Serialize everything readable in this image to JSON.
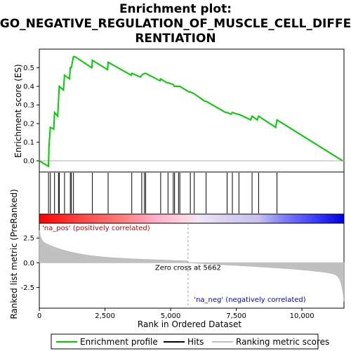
{
  "chart_data": {
    "type": "line",
    "title_lines": [
      "Enrichment plot:",
      "GO_NEGATIVE_REGULATION_OF_MUSCLE_CELL_DIFFE",
      "RENTIATION"
    ],
    "xlabel": "Rank in Ordered Dataset",
    "ylabel_top": "Enrichment score (ES)",
    "ylabel_bottom": "Ranked list metric (PreRanked)",
    "x_range": [
      0,
      11600
    ],
    "x_ticks": [
      0,
      2500,
      5000,
      7500,
      10000
    ],
    "x_tick_labels": [
      "0",
      "2,500",
      "5,000",
      "7,500",
      "10,000"
    ],
    "es_ylim": [
      -0.06,
      0.6
    ],
    "es_ticks": [
      0.0,
      0.1,
      0.2,
      0.3,
      0.4,
      0.5
    ],
    "es_tick_labels": [
      "0.0",
      "0.1",
      "0.2",
      "0.3",
      "0.4",
      "0.5"
    ],
    "metric_ylim": [
      -4.6,
      4.0
    ],
    "metric_ticks": [
      2.5,
      0.0,
      -2.5
    ],
    "metric_tick_labels": [
      "2.5",
      "0.0",
      "-2.5"
    ],
    "es_curve": {
      "x": [
        0,
        350,
        370,
        420,
        550,
        580,
        700,
        730,
        760,
        920,
        960,
        1150,
        1180,
        1220,
        1300,
        1350,
        2000,
        2020,
        2600,
        2620,
        3500,
        3520,
        3850,
        3900,
        4000,
        4050,
        4600,
        4620,
        4850,
        4900,
        5100,
        5150,
        5300,
        5350,
        5700,
        5750,
        5900,
        6300,
        6350,
        7100,
        7150,
        7300,
        7350,
        7550,
        7600,
        8050,
        8100,
        8300,
        8350,
        9000,
        9050,
        11550
      ],
      "y": [
        0.0,
        -0.03,
        0.08,
        0.18,
        0.17,
        0.26,
        0.24,
        0.32,
        0.4,
        0.38,
        0.46,
        0.44,
        0.5,
        0.5,
        0.56,
        0.56,
        0.5,
        0.54,
        0.49,
        0.53,
        0.46,
        0.47,
        0.45,
        0.46,
        0.47,
        0.47,
        0.43,
        0.44,
        0.42,
        0.42,
        0.41,
        0.4,
        0.4,
        0.4,
        0.37,
        0.37,
        0.36,
        0.32,
        0.32,
        0.26,
        0.26,
        0.25,
        0.26,
        0.25,
        0.25,
        0.22,
        0.24,
        0.22,
        0.24,
        0.18,
        0.22,
        0.0
      ]
    },
    "hits": [
      350,
      420,
      580,
      730,
      760,
      960,
      1180,
      1220,
      1300,
      2020,
      2620,
      3520,
      3900,
      4000,
      4050,
      4620,
      4900,
      5100,
      5150,
      5300,
      5350,
      5750,
      5900,
      6350,
      7150,
      7350,
      7600,
      8100,
      8350,
      9050
    ],
    "zero_cross": 5662,
    "zero_cross_label": "Zero cross at 5662",
    "pos_label": "'na_pos' (positively correlated)",
    "neg_label": "'na_neg' (negatively correlated)",
    "legend": [
      "Enrichment profile",
      "Hits",
      "Ranking metric scores"
    ],
    "colors": {
      "es_line": "#00cc00",
      "hit": "#000000",
      "metric_fill": "#c0c0c0",
      "zero_line": "#a0a0a0",
      "pos_label": "#cc0000",
      "neg_label": "#0000cc",
      "heat_red": "#ff0000",
      "heat_pink": "#ffb0c8",
      "heat_light": "#d8d0f0",
      "heat_blue": "#0000ff"
    }
  }
}
